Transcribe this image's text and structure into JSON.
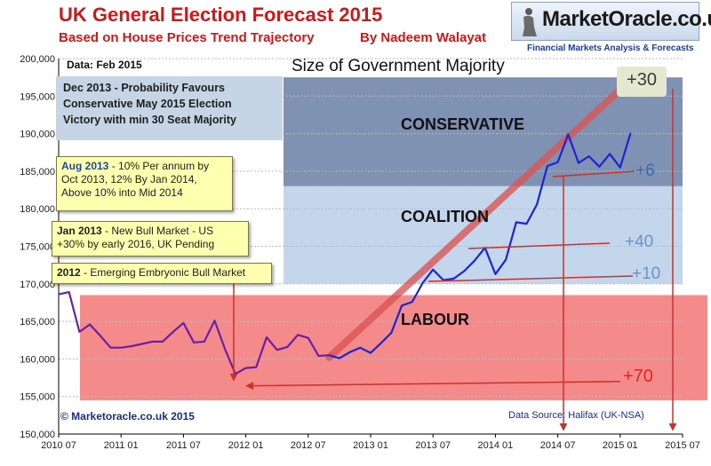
{
  "header": {
    "title": "UK General Election Forecast 2015",
    "subtitle": "Based on House Prices Trend Trajectory",
    "author": "By Nadeem Walayat"
  },
  "logo": {
    "name": "MarketOracle.co.uk",
    "tagline": "Financial Markets Analysis & Forecasts"
  },
  "notes": {
    "data_date": "Data: Feb 2015",
    "majority_title": "Size of Government Majority",
    "dec2013": [
      "Dec 2013 - Probability Favours",
      "Conservative May 2015 Election",
      "Victory with min 30 Seat Majority"
    ],
    "aug2013_head": "Aug 2013",
    "aug2013_lines": [
      " - 10% Per annum by",
      "Oct 2013, 12% By Jan 2014,",
      "Above 10% into Mid 2014"
    ],
    "jan2013_head": "Jan 2013",
    "jan2013_lines": [
      " - New Bull Market - US",
      "+30% by early 2016, UK Pending"
    ],
    "y2012_head": "2012",
    "y2012_text": " - Emerging Embryonic Bull Market",
    "copyright": "© Marketoracle.co.uk 2015",
    "source": "Data Source: Halifax (UK-NSA)"
  },
  "regions": {
    "conservative": "CONSERVATIVE",
    "coalition": "COALITION",
    "labour": "LABOUR"
  },
  "majorities": {
    "plus30": "+30",
    "plus6": "+6",
    "plus40": "+40",
    "plus10": "+10",
    "plus70": "+70"
  },
  "colors": {
    "title_red": "#d01818",
    "series_blue": "#1a24d8",
    "series_purple": "#6c1fa6",
    "conservative_band": "#7f92b4",
    "coalition_band": "#c4d6ec",
    "labour_band": "#f48a8a",
    "arrow_red": "#c8322c"
  },
  "chart_data": {
    "type": "line",
    "title": "UK General Election Forecast 2015",
    "ylim": [
      150000,
      200000
    ],
    "x_ticks": [
      "2010 07",
      "2011 01",
      "2011 07",
      "2012 01",
      "2012 07",
      "2013 01",
      "2013 07",
      "2014 01",
      "2014 07",
      "2015 01",
      "2015 07"
    ],
    "y_ticks": [
      "150,000",
      "155,000",
      "160,000",
      "165,000",
      "170,000",
      "175,000",
      "180,000",
      "185,000",
      "190,000",
      "195,000",
      "200,000"
    ],
    "series": [
      {
        "name": "",
        "x": [
          "2010 07",
          "2010 08",
          "2010 09",
          "2010 10",
          "2010 11",
          "2010 12",
          "2011 01",
          "2011 02",
          "2011 03",
          "2011 04",
          "2011 05",
          "2011 06",
          "2011 07",
          "2011 08",
          "2011 09",
          "2011 10",
          "2011 11",
          "2011 12",
          "2012 01",
          "2012 02",
          "2012 03",
          "2012 04",
          "2012 05",
          "2012 06",
          "2012 07",
          "2012 08",
          "2012 09",
          "2012 10",
          "2012 11",
          "2012 12",
          "2013 01",
          "2013 02",
          "2013 03",
          "2013 04",
          "2013 05",
          "2013 06",
          "2013 07",
          "2013 08",
          "2013 09",
          "2013 10",
          "2013 11",
          "2013 12",
          "2014 01",
          "2014 02",
          "2014 03",
          "2014 04",
          "2014 05",
          "2014 06",
          "2014 07",
          "2014 08",
          "2014 09",
          "2014 10",
          "2014 11",
          "2014 12",
          "2015 01",
          "2015 02"
        ],
        "values": [
          168600,
          168900,
          163600,
          164600,
          163100,
          161500,
          161500,
          161700,
          162000,
          162300,
          162300,
          163600,
          164800,
          162200,
          162300,
          165100,
          161300,
          158000,
          158800,
          158900,
          162900,
          161200,
          161600,
          163200,
          162800,
          160400,
          160500,
          160100,
          160900,
          161500,
          160800,
          162100,
          163500,
          167100,
          167600,
          170100,
          171900,
          170500,
          170700,
          171700,
          173100,
          174800,
          171300,
          173200,
          178200,
          178000,
          180600,
          185700,
          186200,
          189900,
          186100,
          187000,
          185600,
          187300,
          185500,
          190100
        ]
      }
    ],
    "bands": [
      {
        "label": "CONSERVATIVE",
        "y": [
          183000,
          197500
        ]
      },
      {
        "label": "COALITION",
        "y": [
          170000,
          183000
        ]
      },
      {
        "label": "LABOUR",
        "y": [
          154500,
          168500
        ]
      }
    ]
  }
}
